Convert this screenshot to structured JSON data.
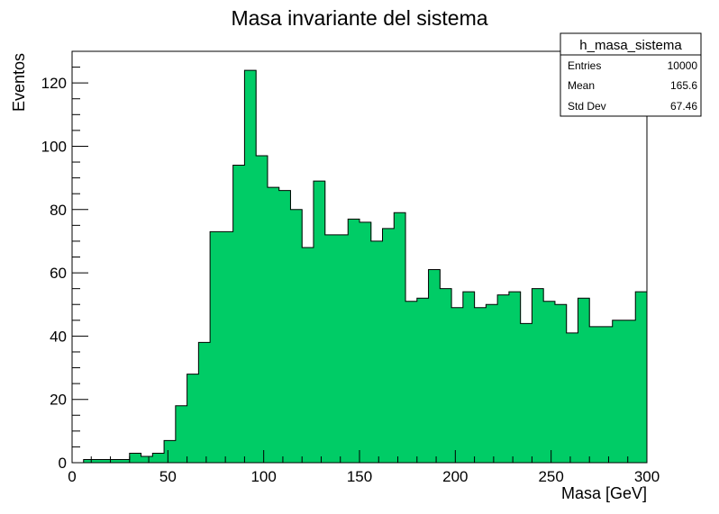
{
  "chart_data": {
    "type": "bar",
    "title": "Masa invariante del sistema",
    "xlabel": "Masa [GeV]",
    "ylabel": "Eventos",
    "xlim": [
      0,
      300
    ],
    "ylim": [
      0,
      130
    ],
    "bin_width": 6,
    "bin_edges_start": 0,
    "x_ticks": [
      0,
      50,
      100,
      150,
      200,
      250,
      300
    ],
    "y_ticks": [
      0,
      20,
      40,
      60,
      80,
      100,
      120
    ],
    "values": [
      0,
      1,
      1,
      1,
      1,
      3,
      2,
      3,
      7,
      18,
      28,
      38,
      73,
      73,
      94,
      124,
      97,
      87,
      86,
      80,
      68,
      89,
      72,
      72,
      77,
      76,
      70,
      74,
      79,
      51,
      52,
      61,
      55,
      49,
      54,
      49,
      50,
      53,
      54,
      44,
      55,
      51,
      50,
      41,
      52,
      43,
      43,
      45,
      45,
      54
    ],
    "fill_color": "#00cc66",
    "stats_box": {
      "name": "h_masa_sistema",
      "rows": [
        {
          "label": "Entries",
          "value": "10000"
        },
        {
          "label": "Mean",
          "value": "165.6"
        },
        {
          "label": "Std Dev",
          "value": "67.46"
        }
      ]
    }
  }
}
